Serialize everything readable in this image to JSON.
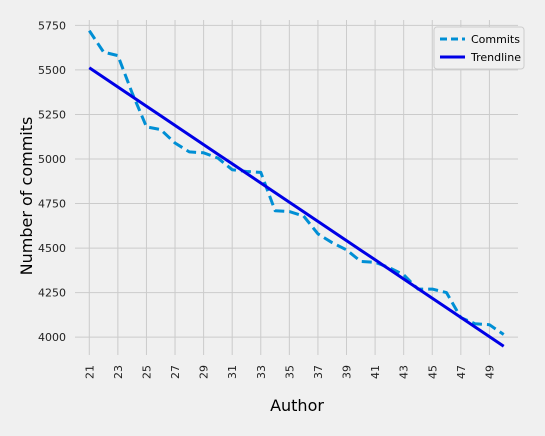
{
  "chart_data": {
    "type": "line",
    "xlabel": "Author",
    "ylabel": "Number of commits",
    "xlim": [
      20,
      51
    ],
    "ylim": [
      3900,
      5780
    ],
    "x_ticks": [
      21,
      23,
      25,
      27,
      29,
      31,
      33,
      35,
      37,
      39,
      41,
      43,
      45,
      47,
      49
    ],
    "y_ticks": [
      4000,
      4250,
      4500,
      4750,
      5000,
      5250,
      5500,
      5750
    ],
    "grid": true,
    "legend_position": "top-right",
    "x": [
      21,
      22,
      23,
      24,
      25,
      26,
      27,
      28,
      29,
      30,
      31,
      32,
      33,
      34,
      35,
      36,
      37,
      38,
      39,
      40,
      41,
      42,
      43,
      44,
      45,
      46,
      47,
      48,
      49,
      50
    ],
    "series": [
      {
        "name": "Commits",
        "style": "dashed",
        "color": "#008fd5",
        "values": [
          5720,
          5600,
          5580,
          5370,
          5180,
          5165,
          5090,
          5040,
          5035,
          5005,
          4940,
          4930,
          4925,
          4710,
          4705,
          4680,
          4580,
          4530,
          4490,
          4425,
          4420,
          4390,
          4350,
          4270,
          4270,
          4250,
          4110,
          4075,
          4070,
          4015
        ]
      },
      {
        "name": "Trendline",
        "style": "solid",
        "color": "#0000e6",
        "values": [
          5512,
          5458.1,
          5404.2,
          5350.3,
          5296.4,
          5242.6,
          5188.7,
          5134.8,
          5080.9,
          5027,
          4973.1,
          4919.2,
          4865.3,
          4811.4,
          4757.6,
          4703.7,
          4649.8,
          4595.9,
          4542,
          4488.1,
          4434.2,
          4380.3,
          4326.4,
          4272.6,
          4218.7,
          4164.8,
          4110.9,
          4057,
          4003.1,
          3949.2
        ]
      }
    ]
  },
  "colors": {
    "background": "#f0f0f0",
    "grid": "#cbcbcb"
  }
}
